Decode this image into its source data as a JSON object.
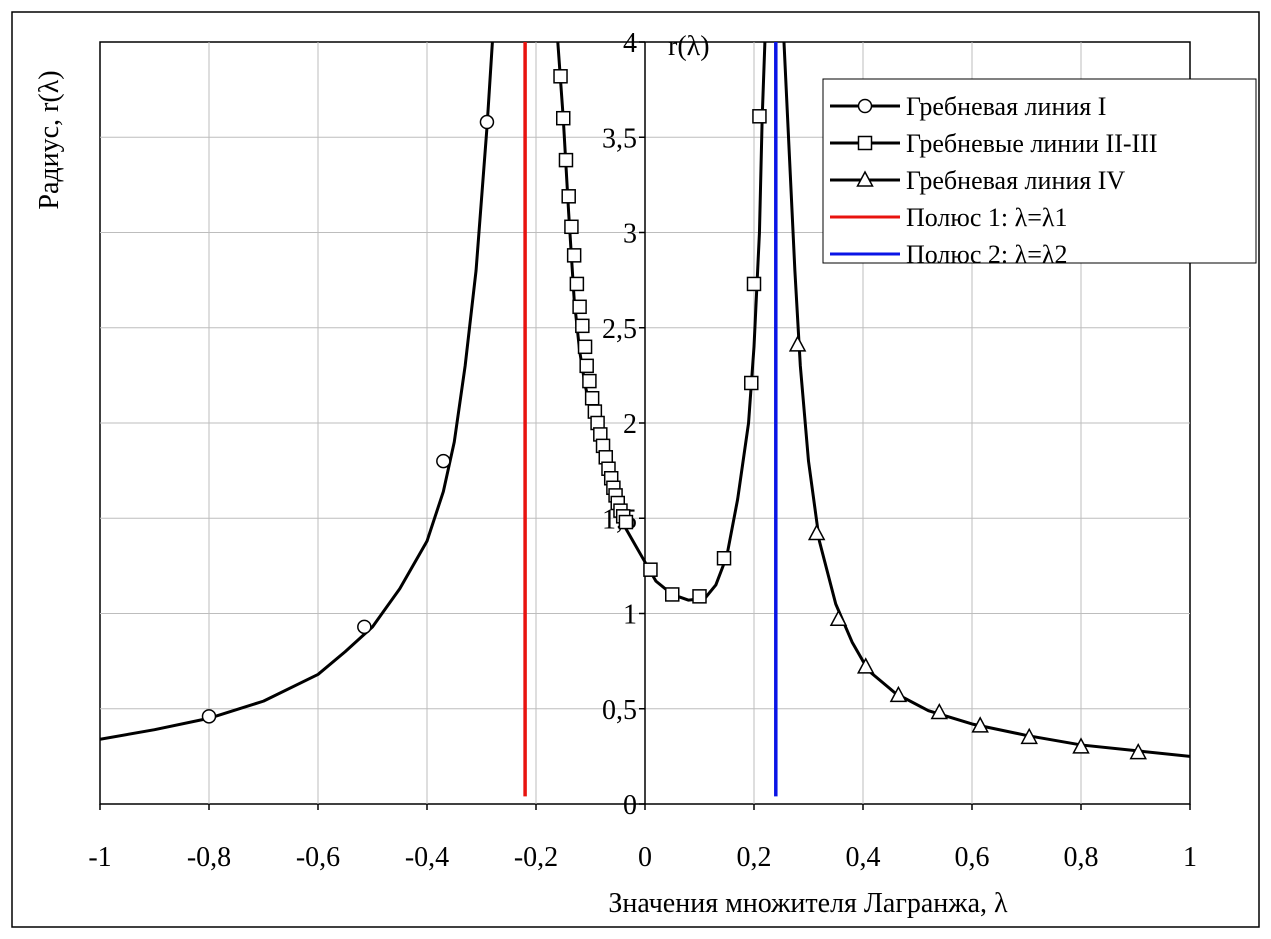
{
  "chart_data": {
    "type": "line",
    "title": "",
    "xlabel": "Значения множителя Лагранжа, λ",
    "ylabel": "Радиус, r(λ)",
    "y_axis_label": "r(λ)",
    "xlim": [
      -1,
      1
    ],
    "ylim": [
      0,
      4
    ],
    "x_ticks": [
      "-1",
      "-0,8",
      "-0,6",
      "-0,4",
      "-0,2",
      "0",
      "0,2",
      "0,4",
      "0,6",
      "0,8",
      "1"
    ],
    "y_ticks": [
      "0",
      "0,5",
      "1",
      "1,5",
      "2",
      "2,5",
      "3",
      "3,5",
      "4"
    ],
    "grid": true,
    "legend_position": "top-right",
    "series": [
      {
        "name": "Гребневая линия I",
        "marker": "circle",
        "color": "#000000",
        "curve": [
          [
            -1.0,
            0.34
          ],
          [
            -0.9,
            0.39
          ],
          [
            -0.8,
            0.45
          ],
          [
            -0.7,
            0.54
          ],
          [
            -0.6,
            0.68
          ],
          [
            -0.55,
            0.8
          ],
          [
            -0.5,
            0.93
          ],
          [
            -0.45,
            1.13
          ],
          [
            -0.4,
            1.38
          ],
          [
            -0.37,
            1.64
          ],
          [
            -0.35,
            1.9
          ],
          [
            -0.33,
            2.3
          ],
          [
            -0.31,
            2.8
          ],
          [
            -0.29,
            3.55
          ],
          [
            -0.28,
            4.0
          ]
        ],
        "points": [
          [
            -0.8,
            0.46
          ],
          [
            -0.515,
            0.93
          ],
          [
            -0.37,
            1.8
          ],
          [
            -0.29,
            3.58
          ]
        ]
      },
      {
        "name": "Гребневые линии II-III",
        "marker": "square",
        "color": "#000000",
        "curve": [
          [
            -0.16,
            4.0
          ],
          [
            -0.15,
            3.6
          ],
          [
            -0.14,
            3.1
          ],
          [
            -0.13,
            2.65
          ],
          [
            -0.12,
            2.38
          ],
          [
            -0.11,
            2.2
          ],
          [
            -0.09,
            1.95
          ],
          [
            -0.07,
            1.7
          ],
          [
            -0.05,
            1.52
          ],
          [
            -0.03,
            1.42
          ],
          [
            0.0,
            1.27
          ],
          [
            0.02,
            1.17
          ],
          [
            0.05,
            1.1
          ],
          [
            0.08,
            1.07
          ],
          [
            0.11,
            1.08
          ],
          [
            0.13,
            1.15
          ],
          [
            0.15,
            1.3
          ],
          [
            0.17,
            1.6
          ],
          [
            0.19,
            2.0
          ],
          [
            0.2,
            2.4
          ],
          [
            0.21,
            3.0
          ],
          [
            0.215,
            3.6
          ],
          [
            0.22,
            4.0
          ]
        ],
        "points": [
          [
            -0.155,
            3.82
          ],
          [
            -0.15,
            3.6
          ],
          [
            -0.145,
            3.38
          ],
          [
            -0.14,
            3.19
          ],
          [
            -0.135,
            3.03
          ],
          [
            -0.13,
            2.88
          ],
          [
            -0.125,
            2.73
          ],
          [
            -0.12,
            2.61
          ],
          [
            -0.115,
            2.51
          ],
          [
            -0.11,
            2.4
          ],
          [
            -0.107,
            2.3
          ],
          [
            -0.102,
            2.22
          ],
          [
            -0.097,
            2.13
          ],
          [
            -0.092,
            2.06
          ],
          [
            -0.087,
            2.0
          ],
          [
            -0.082,
            1.94
          ],
          [
            -0.077,
            1.88
          ],
          [
            -0.072,
            1.82
          ],
          [
            -0.067,
            1.76
          ],
          [
            -0.062,
            1.71
          ],
          [
            -0.058,
            1.66
          ],
          [
            -0.054,
            1.62
          ],
          [
            -0.05,
            1.58
          ],
          [
            -0.045,
            1.54
          ],
          [
            -0.04,
            1.51
          ],
          [
            -0.035,
            1.48
          ],
          [
            0.01,
            1.23
          ],
          [
            0.05,
            1.1
          ],
          [
            0.1,
            1.09
          ],
          [
            0.145,
            1.29
          ],
          [
            0.195,
            2.21
          ],
          [
            0.2,
            2.73
          ],
          [
            0.21,
            3.61
          ]
        ]
      },
      {
        "name": "Гребневая линия IV",
        "marker": "triangle",
        "color": "#000000",
        "curve": [
          [
            0.255,
            4.0
          ],
          [
            0.265,
            3.4
          ],
          [
            0.275,
            2.8
          ],
          [
            0.285,
            2.3
          ],
          [
            0.3,
            1.8
          ],
          [
            0.32,
            1.38
          ],
          [
            0.35,
            1.05
          ],
          [
            0.38,
            0.85
          ],
          [
            0.41,
            0.7
          ],
          [
            0.46,
            0.58
          ],
          [
            0.52,
            0.49
          ],
          [
            0.6,
            0.42
          ],
          [
            0.7,
            0.36
          ],
          [
            0.8,
            0.31
          ],
          [
            0.9,
            0.28
          ],
          [
            1.0,
            0.25
          ]
        ],
        "points": [
          [
            0.28,
            2.41
          ],
          [
            0.315,
            1.42
          ],
          [
            0.355,
            0.97
          ],
          [
            0.405,
            0.72
          ],
          [
            0.465,
            0.57
          ],
          [
            0.54,
            0.48
          ],
          [
            0.615,
            0.41
          ],
          [
            0.705,
            0.35
          ],
          [
            0.8,
            0.3
          ],
          [
            0.905,
            0.27
          ]
        ]
      },
      {
        "name": "Полюс 1: λ=λ1",
        "marker": "none",
        "color": "#e8130f",
        "x": -0.22,
        "y_range": [
          0.04,
          4.0
        ]
      },
      {
        "name": "Полюс 2: λ=λ2",
        "marker": "none",
        "color": "#0a14e6",
        "x": 0.24,
        "y_range": [
          0.04,
          4.0
        ]
      }
    ]
  }
}
